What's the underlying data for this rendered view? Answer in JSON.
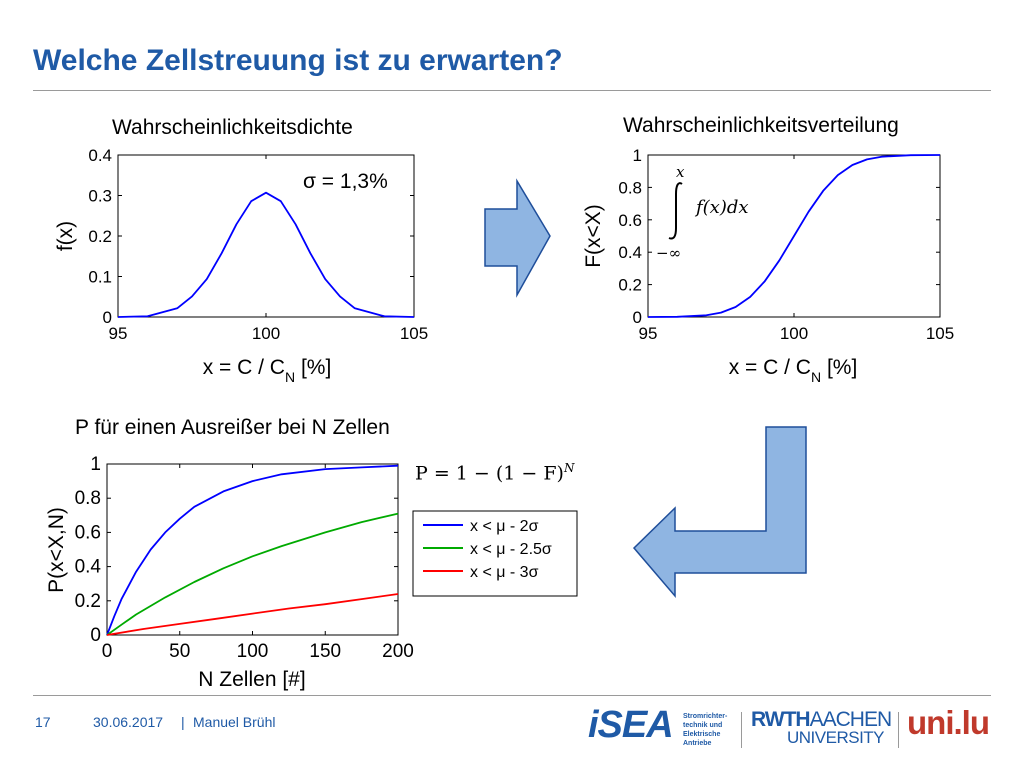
{
  "slide": {
    "title": "Welche Zellstreuung ist zu erwarten?"
  },
  "colors": {
    "title": "#1f5aa6",
    "curve": "#0000ff",
    "green": "#00aa00",
    "red": "#ff0000",
    "arrow_fill": "#8fb5e2",
    "arrow_stroke": "#1f4e9a"
  },
  "annotations": {
    "sigma": "σ = 1,3%",
    "integral_upper": "x",
    "integral_lower": "−∞",
    "integral_body": "f(x)dx",
    "formula": "P = 1 − (1 − F)",
    "formula_exp": "N"
  },
  "chart_data": [
    {
      "type": "line",
      "title": "Wahrscheinlichkeitsdichte",
      "xlabel": "x = C / C",
      "xlabel_sub": "N",
      "xlabel_suffix": " [%]",
      "ylabel": "f(x)",
      "xlim": [
        95,
        105
      ],
      "ylim": [
        0,
        0.4
      ],
      "xticks": [
        "95",
        "100",
        "105"
      ],
      "yticks": [
        "0",
        "0.1",
        "0.2",
        "0.3",
        "0.4"
      ],
      "series": [
        {
          "x": [
            95,
            96,
            97,
            97.5,
            98,
            98.5,
            99,
            99.5,
            100,
            100.5,
            101,
            101.5,
            102,
            102.5,
            103,
            104,
            105
          ],
          "y": [
            0.0001,
            0.0017,
            0.0215,
            0.0508,
            0.0935,
            0.1573,
            0.2289,
            0.2859,
            0.3069,
            0.2859,
            0.2289,
            0.1573,
            0.0935,
            0.0508,
            0.0215,
            0.0017,
            0.0001
          ]
        }
      ]
    },
    {
      "type": "line",
      "title": "Wahrscheinlichkeitsverteilung",
      "xlabel": "x = C / C",
      "xlabel_sub": "N",
      "xlabel_suffix": " [%]",
      "ylabel": "F(x<X)",
      "xlim": [
        95,
        105
      ],
      "ylim": [
        0,
        1
      ],
      "xticks": [
        "95",
        "100",
        "105"
      ],
      "yticks": [
        "0",
        "0.2",
        "0.4",
        "0.6",
        "0.8",
        "1"
      ],
      "series": [
        {
          "x": [
            95,
            96,
            97,
            97.5,
            98,
            98.5,
            99,
            99.5,
            100,
            100.5,
            101,
            101.5,
            102,
            102.5,
            103,
            104,
            105
          ],
          "y": [
            0.0001,
            0.0011,
            0.0105,
            0.0271,
            0.0618,
            0.1241,
            0.2209,
            0.3503,
            0.5,
            0.6497,
            0.7791,
            0.8759,
            0.9382,
            0.9729,
            0.9895,
            0.9989,
            0.9999
          ]
        }
      ]
    },
    {
      "type": "line",
      "title": "P für einen Ausreißer bei N Zellen",
      "xlabel": "N Zellen [#]",
      "ylabel": "P(x<X,N)",
      "xlim": [
        0,
        200
      ],
      "ylim": [
        0,
        1
      ],
      "xticks": [
        "0",
        "50",
        "100",
        "150",
        "200"
      ],
      "yticks": [
        "0",
        "0.2",
        "0.4",
        "0.6",
        "0.8",
        "1"
      ],
      "legend": "right",
      "series": [
        {
          "name": "x < μ - 2σ",
          "color": "#0000ff",
          "x": [
            0,
            5,
            10,
            20,
            30,
            40,
            50,
            60,
            80,
            100,
            120,
            150,
            175,
            200
          ],
          "y": [
            0,
            0.11,
            0.21,
            0.37,
            0.5,
            0.6,
            0.68,
            0.75,
            0.84,
            0.9,
            0.94,
            0.97,
            0.98,
            0.99
          ]
        },
        {
          "name": "x < μ - 2.5σ",
          "color": "#00aa00",
          "x": [
            0,
            10,
            20,
            40,
            60,
            80,
            100,
            120,
            150,
            175,
            200
          ],
          "y": [
            0,
            0.06,
            0.12,
            0.22,
            0.31,
            0.39,
            0.46,
            0.52,
            0.6,
            0.66,
            0.71
          ]
        },
        {
          "name": "x < μ - 3σ",
          "color": "#ff0000",
          "x": [
            0,
            25,
            50,
            75,
            100,
            125,
            150,
            175,
            200
          ],
          "y": [
            0,
            0.035,
            0.065,
            0.095,
            0.125,
            0.155,
            0.18,
            0.21,
            0.24
          ]
        }
      ]
    }
  ],
  "footer": {
    "page": "17",
    "date": "30.06.2017",
    "separator": "|",
    "author": "Manuel Brühl"
  },
  "logos": {
    "isea": "iSEA",
    "isea_caption_1": "Stromrichter-",
    "isea_caption_2": "technik und",
    "isea_caption_3": "Elektrische",
    "isea_caption_4": "Antriebe",
    "rwth": "RWTH",
    "aachen": "AACHEN",
    "university": "UNIVERSITY",
    "unilu": "uni.lu"
  }
}
